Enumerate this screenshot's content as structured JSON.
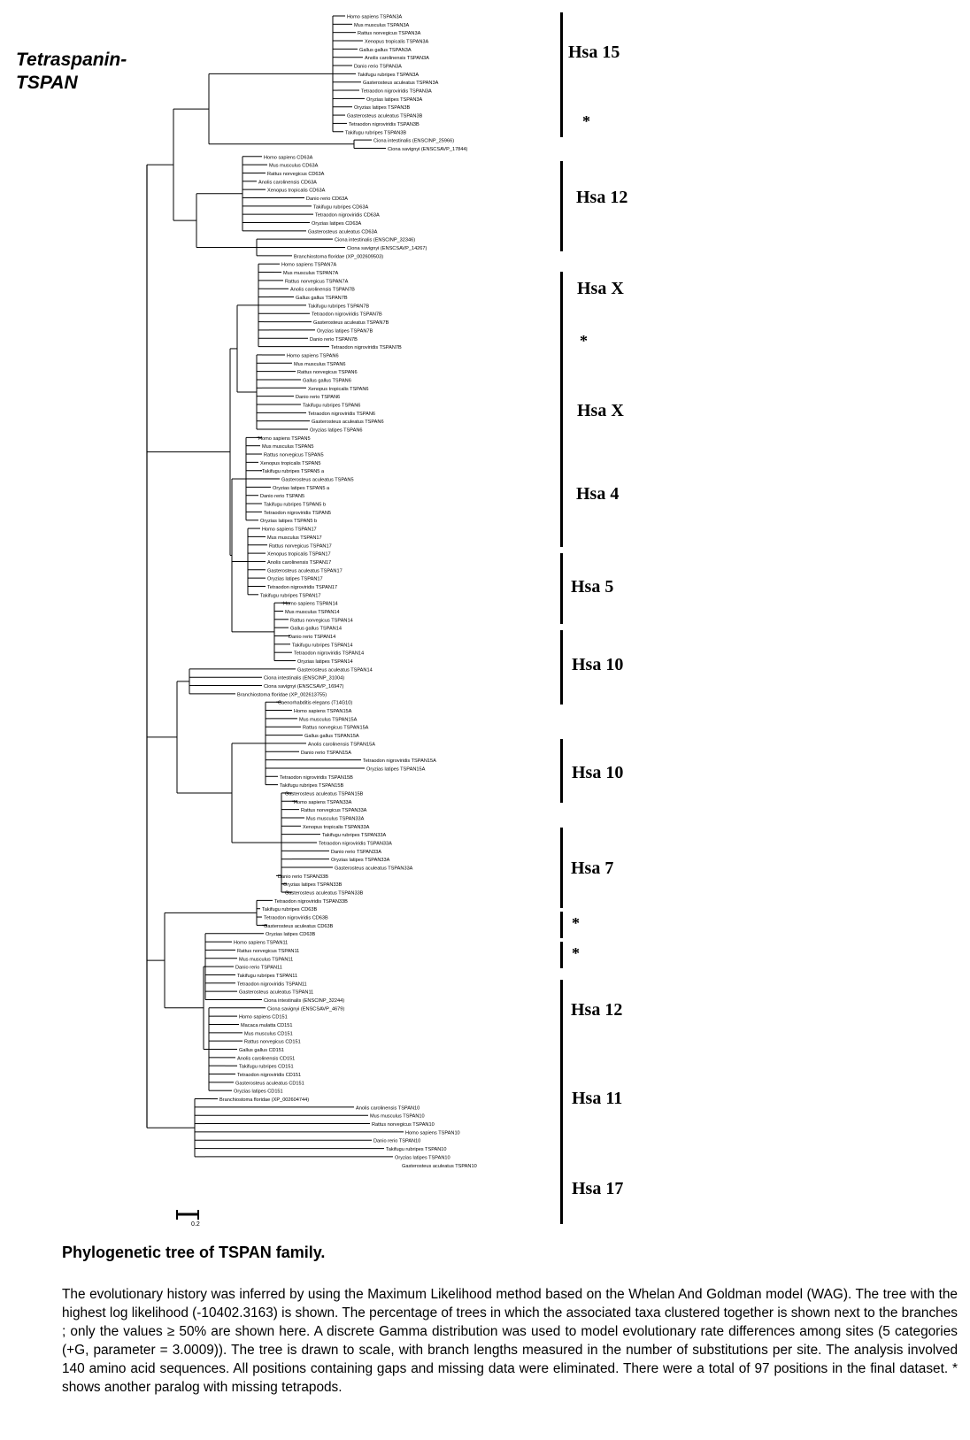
{
  "figure_title_line1": "Tetraspanin-",
  "figure_title_line2": "TSPAN",
  "clades": [
    {
      "label": "Hsa 15"
    },
    {
      "label": "*"
    },
    {
      "label": "Hsa 12"
    },
    {
      "label": "Hsa X"
    },
    {
      "label": "*"
    },
    {
      "label": "Hsa X"
    },
    {
      "label": "Hsa 4"
    },
    {
      "label": "Hsa 5"
    },
    {
      "label": "Hsa 10"
    },
    {
      "label": "Hsa 10"
    },
    {
      "label": "Hsa 7"
    },
    {
      "label": "*"
    },
    {
      "label": "*"
    },
    {
      "label": "Hsa 12"
    },
    {
      "label": "Hsa 11"
    },
    {
      "label": "Hsa 17"
    }
  ],
  "taxa": [
    "Homo sapiens TSPAN3A",
    "Mus musculus TSPAN3A",
    "Rattus norvegicus TSPAN3A",
    "Xenopus tropicalis TSPAN3A",
    "Gallus gallus TSPAN3A",
    "Anolis carolinensis TSPAN3A",
    "Danio rerio TSPAN3A",
    "Takifugu rubripes TSPAN3A",
    "Gasterosteus aculeatus TSPAN3A",
    "Tetraodon nigroviridis TSPAN3A",
    "Oryzias latipes TSPAN3A",
    "Oryzias latipes TSPAN3B",
    "Gasterosteus aculeatus TSPAN3B",
    "Tetraodon nigroviridis TSPAN3B",
    "Takifugu rubripes TSPAN3B",
    "Ciona intestinalis (ENSCINP_25966)",
    "Ciona savignyi (ENSCSAVP_17844)",
    "Homo sapiens CD63A",
    "Mus musculus CD63A",
    "Rattus norvegicus CD63A",
    "Anolis carolinensis CD63A",
    "Xenopus tropicalis CD63A",
    "Danio rerio CD63A",
    "Takifugu rubripes CD63A",
    "Tetraodon nigroviridis CD63A",
    "Oryzias latipes CD63A",
    "Gasterosteus aculeatus CD63A",
    "Ciona intestinalis (ENSCINP_32346)",
    "Ciona savignyi (ENSCSAVP_14267)",
    "Branchiostoma floridae (XP_002609503)",
    "Homo sapiens TSPAN7A",
    "Mus musculus TSPAN7A",
    "Rattus norvegicus TSPAN7A",
    "Anolis carolinensis TSPAN7B",
    "Gallus gallus TSPAN7B",
    "Takifugu rubripes TSPAN7B",
    "Tetraodon nigroviridis TSPAN7B",
    "Gasterosteus aculeatus TSPAN7B",
    "Oryzias latipes TSPAN7B",
    "Danio rerio TSPAN7B",
    "Tetraodon nigroviridis TSPAN7B",
    "Homo sapiens TSPAN6",
    "Mus musculus TSPAN6",
    "Rattus norvegicus TSPAN6",
    "Gallus gallus TSPAN6",
    "Xenopus tropicalis TSPAN6",
    "Danio rerio TSPAN6",
    "Takifugu rubripes TSPAN6",
    "Tetraodon nigroviridis TSPAN6",
    "Gasterosteus aculeatus TSPAN6",
    "Oryzias latipes TSPAN6",
    "Homo sapiens TSPAN5",
    "Mus musculus TSPAN5",
    "Rattus norvegicus TSPAN5",
    "Xenopus tropicalis TSPAN5",
    "Takifugu rubripes TSPAN5 a",
    "Gasterosteus aculeatus TSPAN5",
    "Oryzias latipes TSPAN5 a",
    "Danio rerio TSPAN5",
    "Takifugu rubripes TSPAN5 b",
    "Tetraodon nigroviridis TSPAN5",
    "Oryzias latipes TSPAN5 b",
    "Homo sapiens TSPAN17",
    "Mus musculus TSPAN17",
    "Rattus norvegicus TSPAN17",
    "Xenopus tropicalis TSPAN17",
    "Anolis carolinensis TSPAN17",
    "Gasterosteus aculeatus TSPAN17",
    "Oryzias latipes TSPAN17",
    "Tetraodon nigroviridis TSPAN17",
    "Takifugu rubripes TSPAN17",
    "Homo sapiens TSPAN14",
    "Mus musculus TSPAN14",
    "Rattus norvegicus TSPAN14",
    "Gallus gallus TSPAN14",
    "Danio rerio TSPAN14",
    "Takifugu rubripes TSPAN14",
    "Tetraodon nigroviridis TSPAN14",
    "Oryzias latipes TSPAN14",
    "Gasterosteus aculeatus TSPAN14",
    "Ciona intestinalis (ENSCINP_31004)",
    "Ciona savignyi (ENSCSAVP_16947)",
    "Branchiostoma floridae (XP_002613755)",
    "Caenorhabditis elegans (T14G10)",
    "Homo sapiens TSPAN15A",
    "Mus musculus TSPAN15A",
    "Rattus norvegicus TSPAN15A",
    "Gallus gallus TSPAN15A",
    "Anolis carolinensis TSPAN15A",
    "Danio rerio TSPAN15A",
    "Tetraodon nigroviridis TSPAN15A",
    "Oryzias latipes TSPAN15A",
    "Tetraodon nigroviridis TSPAN15B",
    "Takifugu rubripes TSPAN15B",
    "Gasterosteus aculeatus TSPAN15B",
    "Homo sapiens TSPAN33A",
    "Rattus norvegicus TSPAN33A",
    "Mus musculus TSPAN33A",
    "Xenopus tropicalis TSPAN33A",
    "Takifugu rubripes TSPAN33A",
    "Tetraodon nigroviridis TSPAN33A",
    "Danio rerio TSPAN33A",
    "Oryzias latipes TSPAN33A",
    "Gasterosteus aculeatus TSPAN33A",
    "Danio rerio TSPAN33B",
    "Oryzias latipes TSPAN33B",
    "Gasterosteus aculeatus TSPAN33B",
    "Tetraodon nigroviridis TSPAN33B",
    "Takifugu rubripes CD63B",
    "Tetraodon nigroviridis CD63B",
    "Gasterosteus aculeatus CD63B",
    "Oryzias latipes CD63B",
    "Homo sapiens TSPAN11",
    "Rattus norvegicus TSPAN11",
    "Mus musculus TSPAN11",
    "Danio rerio TSPAN11",
    "Takifugu rubripes TSPAN11",
    "Tetraodon nigroviridis TSPAN11",
    "Gasterosteus aculeatus TSPAN11",
    "Ciona intestinalis (ENSCINP_32244)",
    "Ciona savignyi (ENSCSAVP_4679)",
    "Homo sapiens CD151",
    "Macaca mulatta CD151",
    "Mus musculus CD151",
    "Rattus norvegicus CD151",
    "Gallus gallus CD151",
    "Anolis carolinensis CD151",
    "Takifugu rubripes CD151",
    "Tetraodon nigroviridis CD151",
    "Gasterosteus aculeatus CD151",
    "Oryzias latipes CD151",
    "Branchiostoma floridae (XP_002604744)",
    "Anolis carolinensis TSPAN10",
    "Mus musculus TSPAN10",
    "Rattus norvegicus TSPAN10",
    "Homo sapiens TSPAN10",
    "Danio rerio TSPAN10",
    "Takifugu rubripes TSPAN10",
    "Oryzias latipes TSPAN10",
    "Gasterosteus aculeatus TSPAN10"
  ],
  "scale_label": "0.2",
  "caption": {
    "title": "Phylogenetic tree of TSPAN family.",
    "body": "The evolutionary history was inferred by using the Maximum Likelihood method based on the Whelan And Goldman model (WAG). The tree with the highest log likelihood (-10402.3163) is shown. The percentage of trees in which the associated taxa clustered together is shown next to the  branches ; only the values ≥ 50% are shown here. A discrete Gamma distribution was used to model evolutionary rate differences among sites (5 categories (+G, parameter = 3.0009)). The tree is drawn to scale, with branch lengths measured in the number of substitutions per site. The analysis involved 140 amino acid sequences. All positions containing gaps and missing data were eliminated. There were a total of 97  positions in the final dataset. * shows another paralog with missing tetrapods."
  }
}
